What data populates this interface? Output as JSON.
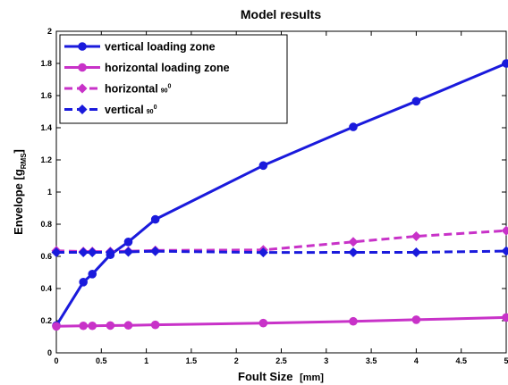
{
  "chart_data": {
    "type": "line",
    "title": "Model results",
    "xlabel": "Foult Size",
    "xlabel_unit": "[mm]",
    "ylabel_main": "Envelope [g",
    "ylabel_sub": "RMS",
    "ylabel_end": "]",
    "xlim": [
      0,
      5
    ],
    "ylim": [
      0,
      2
    ],
    "xticks": [
      0,
      0.5,
      1,
      1.5,
      2,
      2.5,
      3,
      3.5,
      4,
      4.5,
      5
    ],
    "xtick_labels": [
      "0",
      "0.5",
      "1",
      "1.5",
      "2",
      "2.5",
      "3",
      "3.5",
      "4",
      "4.5",
      "5"
    ],
    "yticks": [
      0,
      0.2,
      0.4,
      0.6,
      0.8,
      1,
      1.2,
      1.4,
      1.6,
      1.8,
      2
    ],
    "ytick_labels": [
      "0",
      "0.2",
      "0.4",
      "0.6",
      "0.8",
      "1",
      "1.2",
      "1.4",
      "1.6",
      "1.8",
      "2"
    ],
    "grid": false,
    "legend_position": "top-left",
    "series": [
      {
        "name": "vertical loading zone",
        "color": "#1a1adc",
        "dash": false,
        "marker": "circle",
        "points": [
          [
            0,
            0.17
          ],
          [
            0.3,
            0.44
          ],
          [
            0.4,
            0.49
          ],
          [
            0.6,
            0.61
          ],
          [
            0.8,
            0.69
          ],
          [
            1.1,
            0.83
          ],
          [
            2.3,
            1.165
          ],
          [
            3.3,
            1.405
          ],
          [
            4,
            1.565
          ],
          [
            5,
            1.8
          ]
        ]
      },
      {
        "name": "horizontal loading zone",
        "color": "#c832c8",
        "dash": false,
        "marker": "circle",
        "points": [
          [
            0,
            0.165
          ],
          [
            0.3,
            0.168
          ],
          [
            0.4,
            0.168
          ],
          [
            0.6,
            0.17
          ],
          [
            0.8,
            0.171
          ],
          [
            1.1,
            0.174
          ],
          [
            2.3,
            0.185
          ],
          [
            3.3,
            0.196
          ],
          [
            4,
            0.206
          ],
          [
            5,
            0.22
          ]
        ]
      },
      {
        "name": "horizontal",
        "name_suffix": "90",
        "name_degree": "0",
        "color": "#c832c8",
        "dash": true,
        "marker": "diamond",
        "points": [
          [
            0,
            0.635
          ],
          [
            0.3,
            0.63
          ],
          [
            0.4,
            0.63
          ],
          [
            0.6,
            0.63
          ],
          [
            0.8,
            0.632
          ],
          [
            1.1,
            0.637
          ],
          [
            2.3,
            0.64
          ],
          [
            3.3,
            0.69
          ],
          [
            4,
            0.725
          ],
          [
            5,
            0.76
          ]
        ]
      },
      {
        "name": "vertical",
        "name_suffix": "90",
        "name_degree": "0",
        "color": "#1a1adc",
        "dash": true,
        "marker": "diamond",
        "points": [
          [
            0,
            0.625
          ],
          [
            0.3,
            0.625
          ],
          [
            0.4,
            0.625
          ],
          [
            0.6,
            0.625
          ],
          [
            0.8,
            0.628
          ],
          [
            1.1,
            0.632
          ],
          [
            2.3,
            0.624
          ],
          [
            3.3,
            0.625
          ],
          [
            4,
            0.625
          ],
          [
            5,
            0.633
          ]
        ]
      }
    ]
  }
}
